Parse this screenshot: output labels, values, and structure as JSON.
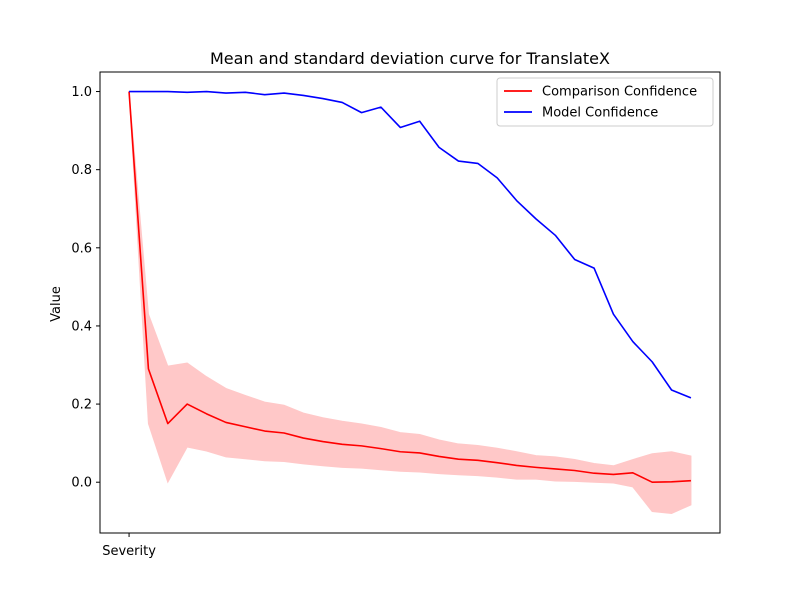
{
  "chart_data": {
    "type": "line",
    "title": "Mean and standard deviation curve for TranslateX",
    "xlabel": "",
    "ylabel": "Value",
    "x_tick_labels": [
      "Severity"
    ],
    "y_ticks": [
      0.0,
      0.2,
      0.4,
      0.6,
      0.8,
      1.0
    ],
    "y_tick_labels": [
      "0.0",
      "0.2",
      "0.4",
      "0.6",
      "0.8",
      "1.0"
    ],
    "ylim": [
      -0.13,
      1.05
    ],
    "x": [
      0,
      1,
      2,
      3,
      4,
      5,
      6,
      7,
      8,
      9,
      10,
      11,
      12,
      13,
      14,
      15,
      16,
      17,
      18,
      19,
      20,
      21,
      22,
      23,
      24,
      25,
      26,
      27,
      28,
      29
    ],
    "xlim": [
      -1.5,
      30.5
    ],
    "grid": false,
    "legend_position": "top-right",
    "series": [
      {
        "name": "Comparison Confidence",
        "color": "#ff0000",
        "band_color": "#ffc8c8",
        "values": [
          1.0,
          0.29,
          0.15,
          0.2,
          0.175,
          0.153,
          0.142,
          0.131,
          0.126,
          0.113,
          0.104,
          0.097,
          0.093,
          0.086,
          0.078,
          0.075,
          0.066,
          0.059,
          0.056,
          0.05,
          0.043,
          0.038,
          0.034,
          0.03,
          0.023,
          0.02,
          0.024,
          0.0,
          0.001,
          0.004
        ],
        "lower": [
          1.0,
          0.15,
          0.0,
          0.09,
          0.08,
          0.065,
          0.06,
          0.055,
          0.053,
          0.047,
          0.042,
          0.038,
          0.036,
          0.032,
          0.028,
          0.026,
          0.022,
          0.019,
          0.017,
          0.013,
          0.008,
          0.008,
          0.003,
          0.002,
          0.0,
          -0.002,
          -0.012,
          -0.075,
          -0.08,
          -0.058
        ],
        "upper": [
          1.0,
          0.43,
          0.297,
          0.305,
          0.27,
          0.24,
          0.222,
          0.205,
          0.197,
          0.177,
          0.165,
          0.156,
          0.149,
          0.14,
          0.127,
          0.122,
          0.108,
          0.098,
          0.094,
          0.087,
          0.078,
          0.068,
          0.065,
          0.058,
          0.048,
          0.042,
          0.058,
          0.073,
          0.078,
          0.067
        ]
      },
      {
        "name": "Model Confidence",
        "color": "#0000ff",
        "values": [
          1.0,
          1.0,
          1.0,
          0.998,
          1.0,
          0.996,
          0.998,
          0.992,
          0.996,
          0.99,
          0.982,
          0.972,
          0.946,
          0.96,
          0.908,
          0.924,
          0.857,
          0.822,
          0.816,
          0.779,
          0.721,
          0.674,
          0.632,
          0.57,
          0.548,
          0.43,
          0.36,
          0.308,
          0.236,
          0.216
        ]
      }
    ]
  }
}
